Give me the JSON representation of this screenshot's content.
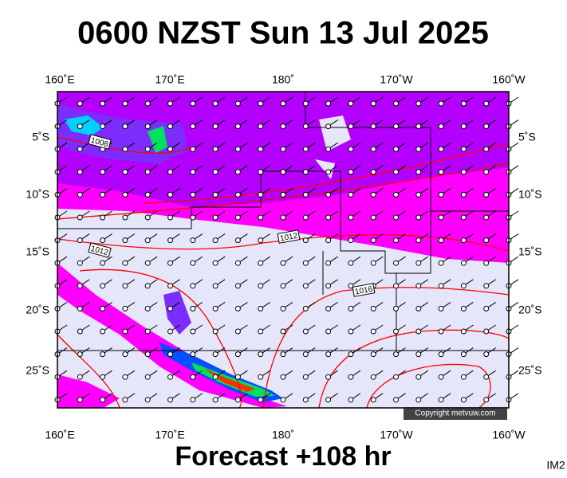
{
  "title": "0600 NZST Sun 13 Jul 2025",
  "footer": "Forecast +108 hr",
  "corner_label": "IM2",
  "copyright": "Copyright metvuw.com",
  "longitude_labels": [
    "160˚E",
    "170˚E",
    "180˚",
    "170˚W",
    "160˚W"
  ],
  "latitude_labels": [
    "5˚S",
    "10˚S",
    "15˚S",
    "20˚S",
    "25˚S"
  ],
  "isobar_labels": [
    "1008",
    "1012",
    "1012",
    "1016"
  ]
}
